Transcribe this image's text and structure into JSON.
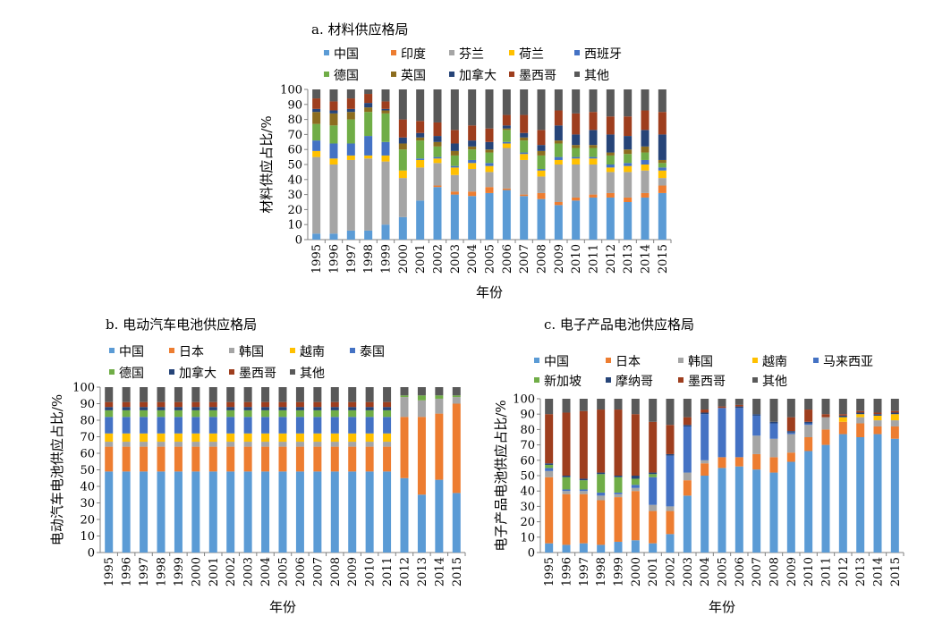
{
  "chart_data": [
    {
      "type": "stacked-bar",
      "title": "a. 材料供应格局",
      "xlabel": "年份",
      "ylabel": "材料供应占比/%",
      "ylim": [
        0,
        100
      ],
      "yticks": [
        0,
        10,
        20,
        30,
        40,
        50,
        60,
        70,
        80,
        90,
        100
      ],
      "grid": false,
      "legend_position": "top",
      "categories": [
        "1995",
        "1996",
        "1997",
        "1998",
        "1999",
        "2000",
        "2001",
        "2002",
        "2003",
        "2004",
        "2005",
        "2006",
        "2007",
        "2008",
        "2009",
        "2010",
        "2011",
        "2012",
        "2013",
        "2014",
        "2015"
      ],
      "series": [
        {
          "name": "中国",
          "color": "#5B9BD5",
          "values": [
            4,
            4,
            6,
            6,
            10,
            15,
            26,
            35,
            30,
            29,
            31,
            33,
            29,
            27,
            23,
            26,
            28,
            28,
            25,
            28,
            31
          ]
        },
        {
          "name": "印度",
          "color": "#ED7D31",
          "values": [
            0,
            0,
            0,
            0,
            0,
            0,
            0,
            1,
            2,
            3,
            4,
            1,
            1,
            4,
            2,
            2,
            2,
            3,
            3,
            3,
            5
          ]
        },
        {
          "name": "芬兰",
          "color": "#A5A5A5",
          "values": [
            51,
            46,
            47,
            48,
            42,
            26,
            22,
            15,
            11,
            15,
            10,
            27,
            23,
            11,
            25,
            22,
            20,
            14,
            17,
            15,
            5
          ]
        },
        {
          "name": "荷兰",
          "color": "#FFC000",
          "values": [
            4,
            4,
            3,
            2,
            4,
            5,
            5,
            3,
            5,
            4,
            4,
            3,
            4,
            4,
            3,
            4,
            4,
            3,
            4,
            4,
            5
          ]
        },
        {
          "name": "西班牙",
          "color": "#4472C4",
          "values": [
            7,
            10,
            8,
            13,
            9,
            0,
            1,
            1,
            1,
            2,
            2,
            1,
            1,
            1,
            2,
            1,
            1,
            2,
            2,
            3,
            2
          ]
        },
        {
          "name": "德国",
          "color": "#70AD47",
          "values": [
            11,
            12,
            16,
            16,
            19,
            14,
            12,
            7,
            7,
            7,
            7,
            8,
            8,
            9,
            9,
            6,
            6,
            6,
            6,
            5,
            3
          ]
        },
        {
          "name": "英国",
          "color": "#8C6D1F",
          "values": [
            8,
            8,
            5,
            3,
            2,
            4,
            2,
            3,
            3,
            2,
            2,
            1,
            2,
            3,
            2,
            2,
            2,
            2,
            3,
            4,
            2
          ]
        },
        {
          "name": "加拿大",
          "color": "#264478",
          "values": [
            2,
            2,
            2,
            3,
            1,
            4,
            3,
            4,
            5,
            4,
            5,
            2,
            3,
            4,
            10,
            7,
            10,
            12,
            9,
            11,
            17
          ]
        },
        {
          "name": "墨西哥",
          "color": "#9E3E1E",
          "values": [
            7,
            6,
            7,
            6,
            5,
            12,
            8,
            9,
            9,
            10,
            9,
            7,
            12,
            10,
            10,
            14,
            12,
            12,
            13,
            13,
            15
          ]
        },
        {
          "name": "其他",
          "color": "#595959",
          "values": [
            6,
            8,
            6,
            3,
            8,
            20,
            21,
            22,
            27,
            24,
            26,
            17,
            17,
            27,
            14,
            16,
            15,
            18,
            18,
            14,
            15
          ]
        }
      ]
    },
    {
      "type": "stacked-bar",
      "title": "b. 电动汽车电池供应格局",
      "xlabel": "年份",
      "ylabel": "电动汽车电池供应占比/%",
      "ylim": [
        0,
        100
      ],
      "yticks": [
        0,
        10,
        20,
        30,
        40,
        50,
        60,
        70,
        80,
        90,
        100
      ],
      "grid": false,
      "legend_position": "top",
      "categories": [
        "1995",
        "1996",
        "1997",
        "1998",
        "1999",
        "2000",
        "2001",
        "2002",
        "2003",
        "2004",
        "2005",
        "2006",
        "2007",
        "2008",
        "2009",
        "2010",
        "2011",
        "2012",
        "2013",
        "2014",
        "2015"
      ],
      "series": [
        {
          "name": "中国",
          "color": "#5B9BD5",
          "values": [
            49,
            49,
            49,
            49,
            49,
            49,
            49,
            49,
            49,
            49,
            49,
            49,
            49,
            49,
            49,
            49,
            49,
            45,
            35,
            44,
            36
          ]
        },
        {
          "name": "日本",
          "color": "#ED7D31",
          "values": [
            15,
            15,
            15,
            15,
            15,
            15,
            15,
            15,
            15,
            15,
            15,
            15,
            15,
            15,
            15,
            15,
            15,
            37,
            47,
            40,
            54
          ]
        },
        {
          "name": "韩国",
          "color": "#A5A5A5",
          "values": [
            3,
            3,
            3,
            3,
            3,
            3,
            3,
            3,
            3,
            3,
            3,
            3,
            3,
            3,
            3,
            3,
            3,
            12,
            10,
            9,
            4
          ]
        },
        {
          "name": "越南",
          "color": "#FFC000",
          "values": [
            5,
            5,
            5,
            5,
            5,
            5,
            5,
            5,
            5,
            5,
            5,
            5,
            5,
            5,
            5,
            5,
            5,
            0,
            0,
            0,
            0
          ]
        },
        {
          "name": "泰国",
          "color": "#4472C4",
          "values": [
            10,
            10,
            10,
            10,
            10,
            10,
            10,
            10,
            10,
            10,
            10,
            10,
            10,
            10,
            10,
            10,
            10,
            0,
            0,
            0,
            0
          ]
        },
        {
          "name": "德国",
          "color": "#70AD47",
          "values": [
            4,
            4,
            4,
            4,
            4,
            4,
            4,
            4,
            4,
            4,
            4,
            4,
            4,
            4,
            4,
            4,
            4,
            1,
            3,
            2,
            1
          ]
        },
        {
          "name": "加拿大",
          "color": "#264478",
          "values": [
            2,
            2,
            2,
            2,
            2,
            2,
            2,
            2,
            2,
            2,
            2,
            2,
            2,
            2,
            2,
            2,
            2,
            0,
            0,
            0,
            0
          ]
        },
        {
          "name": "墨西哥",
          "color": "#9E3E1E",
          "values": [
            3,
            3,
            3,
            3,
            3,
            3,
            3,
            3,
            3,
            3,
            3,
            3,
            3,
            3,
            3,
            3,
            3,
            0,
            0,
            0,
            0
          ]
        },
        {
          "name": "其他",
          "color": "#595959",
          "values": [
            9,
            9,
            9,
            9,
            9,
            9,
            9,
            9,
            9,
            9,
            9,
            9,
            9,
            9,
            9,
            9,
            9,
            5,
            5,
            5,
            5
          ]
        }
      ]
    },
    {
      "type": "stacked-bar",
      "title": "c. 电子产品电池供应格局",
      "xlabel": "年份",
      "ylabel": "电子产品电池供应占比/%",
      "ylim": [
        0,
        100
      ],
      "yticks": [
        0,
        10,
        20,
        30,
        40,
        50,
        60,
        70,
        80,
        90,
        100
      ],
      "grid": false,
      "legend_position": "top",
      "categories": [
        "1995",
        "1996",
        "1997",
        "1998",
        "1999",
        "2000",
        "2001",
        "2002",
        "2003",
        "2004",
        "2005",
        "2006",
        "2007",
        "2008",
        "2009",
        "2010",
        "2011",
        "2012",
        "2013",
        "2014",
        "2015"
      ],
      "series": [
        {
          "name": "中国",
          "color": "#5B9BD5",
          "values": [
            6,
            5,
            6,
            5,
            7,
            8,
            6,
            12,
            37,
            50,
            55,
            56,
            54,
            52,
            59,
            66,
            70,
            77,
            75,
            77,
            74
          ]
        },
        {
          "name": "日本",
          "color": "#ED7D31",
          "values": [
            43,
            33,
            32,
            29,
            29,
            32,
            21,
            15,
            10,
            8,
            7,
            6,
            10,
            10,
            6,
            9,
            10,
            8,
            9,
            5,
            8
          ]
        },
        {
          "name": "韩国",
          "color": "#A5A5A5",
          "values": [
            4,
            2,
            2,
            3,
            2,
            2,
            4,
            3,
            5,
            2,
            0,
            0,
            12,
            12,
            12,
            8,
            8,
            0,
            4,
            4,
            4
          ]
        },
        {
          "name": "越南",
          "color": "#FFC000",
          "values": [
            0,
            0,
            0,
            0,
            0,
            0,
            0,
            0,
            0,
            0,
            0,
            0,
            0,
            0,
            0,
            0,
            0,
            3,
            2,
            3,
            4
          ]
        },
        {
          "name": "马来西亚",
          "color": "#4472C4",
          "values": [
            2,
            1,
            1,
            2,
            1,
            2,
            18,
            33,
            30,
            30,
            32,
            32,
            13,
            10,
            1,
            1,
            0,
            0,
            0,
            0,
            0
          ]
        },
        {
          "name": "新加坡",
          "color": "#70AD47",
          "values": [
            2,
            8,
            6,
            12,
            10,
            4,
            2,
            0,
            0,
            0,
            0,
            0,
            0,
            0,
            0,
            0,
            0,
            0,
            0,
            0,
            0
          ]
        },
        {
          "name": "摩纳哥",
          "color": "#264478",
          "values": [
            1,
            1,
            1,
            1,
            1,
            2,
            1,
            1,
            1,
            1,
            0,
            1,
            1,
            1,
            1,
            1,
            0,
            1,
            1,
            1,
            1
          ]
        },
        {
          "name": "墨西哥",
          "color": "#9E3E1E",
          "values": [
            32,
            41,
            44,
            41,
            43,
            40,
            33,
            19,
            5,
            2,
            1,
            1,
            0,
            0,
            9,
            8,
            2,
            1,
            1,
            1,
            1
          ]
        },
        {
          "name": "其他",
          "color": "#595959",
          "values": [
            10,
            9,
            8,
            7,
            7,
            10,
            15,
            17,
            12,
            7,
            5,
            4,
            10,
            15,
            12,
            7,
            10,
            10,
            8,
            9,
            8
          ]
        }
      ]
    }
  ]
}
